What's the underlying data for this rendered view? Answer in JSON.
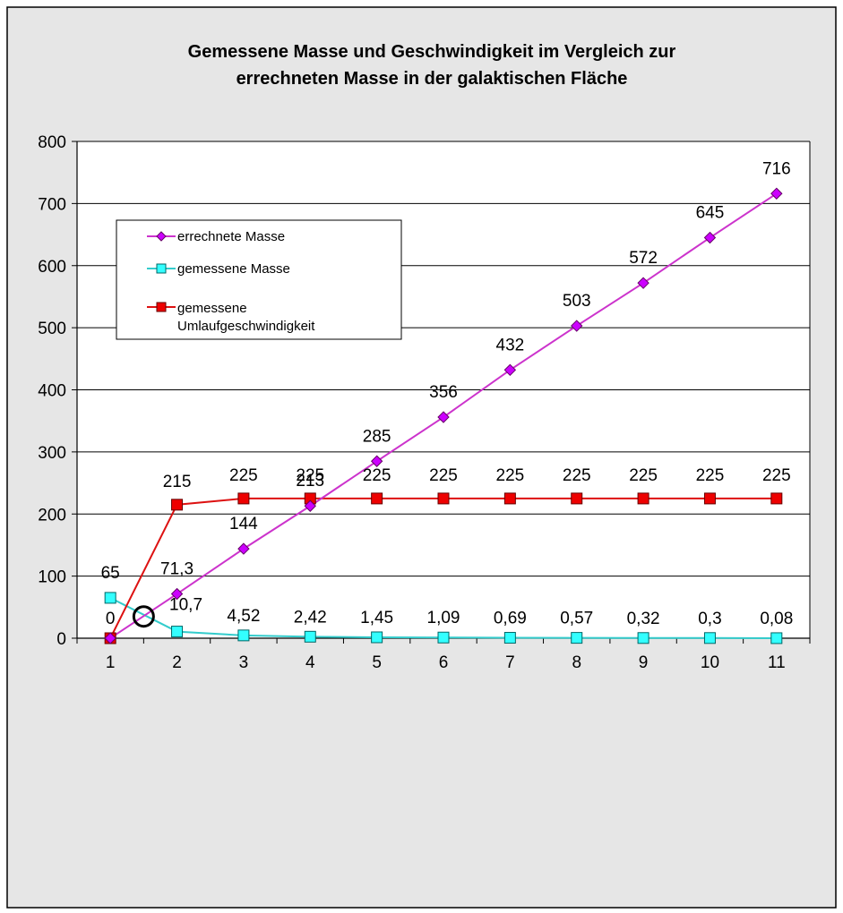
{
  "chart_data": {
    "type": "line",
    "title_lines": [
      "Gemessene Masse und Geschwindigkeit im Vergleich zur",
      "errechneten Masse in der galaktischen Fläche"
    ],
    "categories": [
      "1",
      "2",
      "3",
      "4",
      "5",
      "6",
      "7",
      "8",
      "9",
      "10",
      "11"
    ],
    "ylim": [
      0,
      800
    ],
    "yticks": [
      "0",
      "100",
      "200",
      "300",
      "400",
      "500",
      "600",
      "700",
      "800"
    ],
    "grid": "horizontal",
    "legend_placement": "top-left",
    "series": [
      {
        "name": "errechnete Masse",
        "marker": "diamond",
        "color": "#cc33cc",
        "marker_color": "#cc00ff",
        "values": [
          0,
          71.3,
          144,
          213,
          285,
          356,
          432,
          503,
          572,
          645,
          716
        ],
        "labels": [
          "0",
          "71,3",
          "144",
          "213",
          "285",
          "356",
          "432",
          "503",
          "572",
          "645",
          "716"
        ]
      },
      {
        "name": "gemessene Masse",
        "marker": "square",
        "color": "#33cccc",
        "marker_color": "#33ffff",
        "values": [
          65,
          10.7,
          4.52,
          2.42,
          1.45,
          1.09,
          0.69,
          0.57,
          0.32,
          0.3,
          0.08
        ],
        "labels": [
          "65",
          "10,7",
          "4,52",
          "2,42",
          "1,45",
          "1,09",
          "0,69",
          "0,57",
          "0,32",
          "0,3",
          "0,08"
        ]
      },
      {
        "name_lines": [
          "gemessene",
          "Umlaufgeschwindigkeit"
        ],
        "marker": "square",
        "color": "#dd1111",
        "marker_color": "#ee0000",
        "values": [
          0,
          215,
          225,
          225,
          225,
          225,
          225,
          225,
          225,
          225,
          225
        ],
        "labels": [
          "",
          "215",
          "225",
          "225",
          "225",
          "225",
          "225",
          "225",
          "225",
          "225",
          "225"
        ]
      }
    ],
    "annotation": {
      "type": "circle",
      "x": 1.5,
      "y": 35
    },
    "colors": {
      "chart_area": "#e6e6e6",
      "plot_area": "#ffffff",
      "gridline": "#000000"
    }
  }
}
